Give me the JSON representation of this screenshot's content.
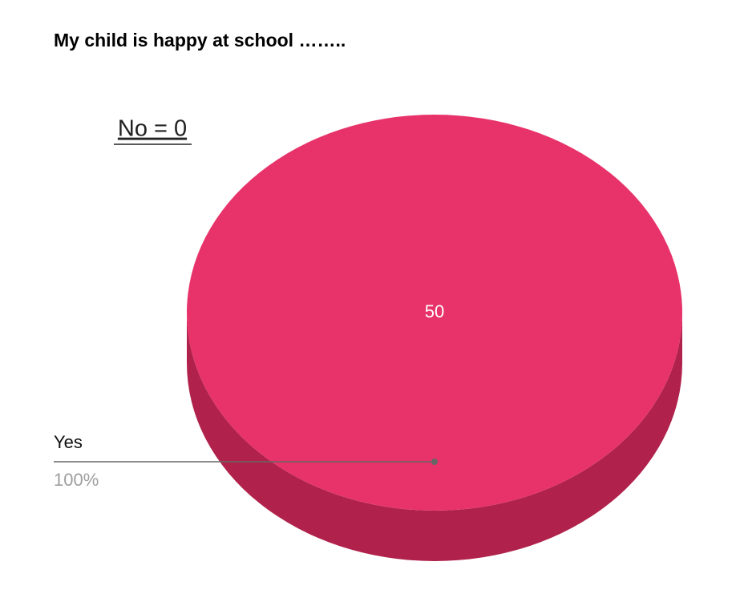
{
  "chart_data": {
    "type": "pie3d",
    "title": "My child is happy at school ……..",
    "annotations": [
      "No = 0"
    ],
    "categories": [
      "Yes"
    ],
    "values": [
      50
    ],
    "percents": [
      100
    ],
    "percent_labels": [
      "100%"
    ],
    "colors": [
      "#e8336a"
    ],
    "side_colors": [
      "#b0224b"
    ]
  }
}
